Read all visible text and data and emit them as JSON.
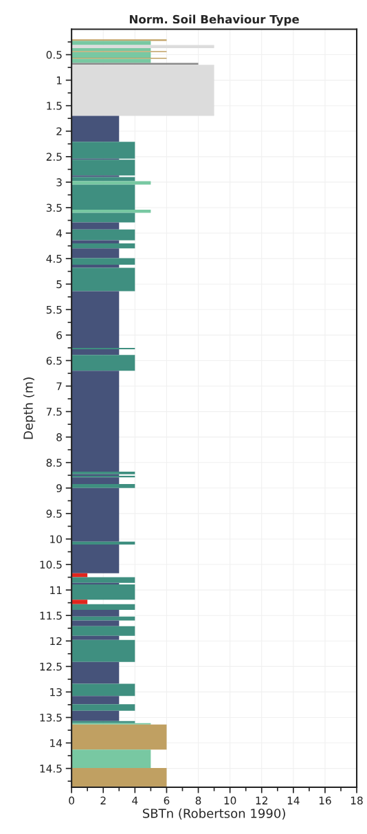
{
  "chart_data": {
    "type": "histogram",
    "orientation": "horizontal",
    "title": "Norm. Soil Behaviour Type",
    "xlabel": "SBTn (Robertson 1990)",
    "ylabel": "Depth (m)",
    "bins": [
      0.2,
      0.23,
      0.31,
      0.37,
      0.43,
      0.45,
      0.56,
      0.58,
      0.66,
      0.7,
      1.7,
      2.21,
      2.54,
      2.56,
      2.87,
      2.9,
      2.98,
      3.05,
      3.54,
      3.6,
      3.79,
      3.93,
      4.14,
      4.2,
      4.3,
      4.49,
      4.62,
      4.68,
      5.14,
      6.25,
      6.28,
      6.39,
      6.7,
      8.68,
      8.73,
      8.76,
      8.79,
      8.92,
      9.0,
      10.05,
      10.11,
      10.67,
      10.75,
      10.86,
      10.89,
      11.19,
      11.28,
      11.39,
      11.52,
      11.6,
      11.71,
      11.9,
      11.98,
      12.41,
      12.84,
      13.08,
      13.24,
      13.37,
      13.57,
      13.61,
      13.64,
      14.13,
      14.49,
      14.87
    ],
    "values": [
      6,
      5,
      9,
      5,
      6,
      5,
      6,
      5,
      8,
      9,
      3,
      4,
      3,
      4,
      3,
      4,
      5,
      4,
      5,
      4,
      3,
      4,
      3,
      4,
      3,
      4,
      3,
      4,
      3,
      4,
      3,
      4,
      3,
      4,
      3,
      4,
      3,
      4,
      3,
      4,
      3,
      1,
      4,
      3,
      4,
      1,
      4,
      3,
      4,
      3,
      4,
      3,
      4,
      3,
      4,
      3,
      4,
      3,
      4,
      5,
      6,
      5,
      6
    ],
    "colors": [
      "#c0a062",
      "#78c8a2",
      "#dcdcdc",
      "#78c8a2",
      "#c0a062",
      "#78c8a2",
      "#c0a062",
      "#78c8a2",
      "#8a8a8a",
      "#dcdcdc",
      "#46537a",
      "#3f8f80",
      "#46537a",
      "#3f8f80",
      "#46537a",
      "#3f8f80",
      "#78c8a2",
      "#3f8f80",
      "#78c8a2",
      "#3f8f80",
      "#46537a",
      "#3f8f80",
      "#46537a",
      "#3f8f80",
      "#46537a",
      "#3f8f80",
      "#46537a",
      "#3f8f80",
      "#46537a",
      "#3f8f80",
      "#46537a",
      "#3f8f80",
      "#46537a",
      "#3f8f80",
      "#46537a",
      "#3f8f80",
      "#46537a",
      "#3f8f80",
      "#46537a",
      "#3f8f80",
      "#46537a",
      "#e0261e",
      "#3f8f80",
      "#46537a",
      "#3f8f80",
      "#e0261e",
      "#3f8f80",
      "#46537a",
      "#3f8f80",
      "#46537a",
      "#3f8f80",
      "#46537a",
      "#3f8f80",
      "#46537a",
      "#3f8f80",
      "#46537a",
      "#3f8f80",
      "#46537a",
      "#3f8f80",
      "#78c8a2",
      "#c0a062",
      "#78c8a2",
      "#c0a062"
    ],
    "xlim": [
      0,
      18
    ],
    "xticks": [
      0,
      2,
      4,
      6,
      8,
      10,
      12,
      14,
      16,
      18
    ],
    "ylim": [
      14.87,
      0
    ],
    "yticks": [
      0.5,
      1,
      1.5,
      2,
      2.5,
      3,
      3.5,
      4,
      4.5,
      5,
      5.5,
      6,
      6.5,
      7,
      7.5,
      8,
      8.5,
      9,
      9.5,
      10,
      10.5,
      11,
      11.5,
      12,
      12.5,
      13,
      13.5,
      14,
      14.5
    ],
    "grid": true
  }
}
